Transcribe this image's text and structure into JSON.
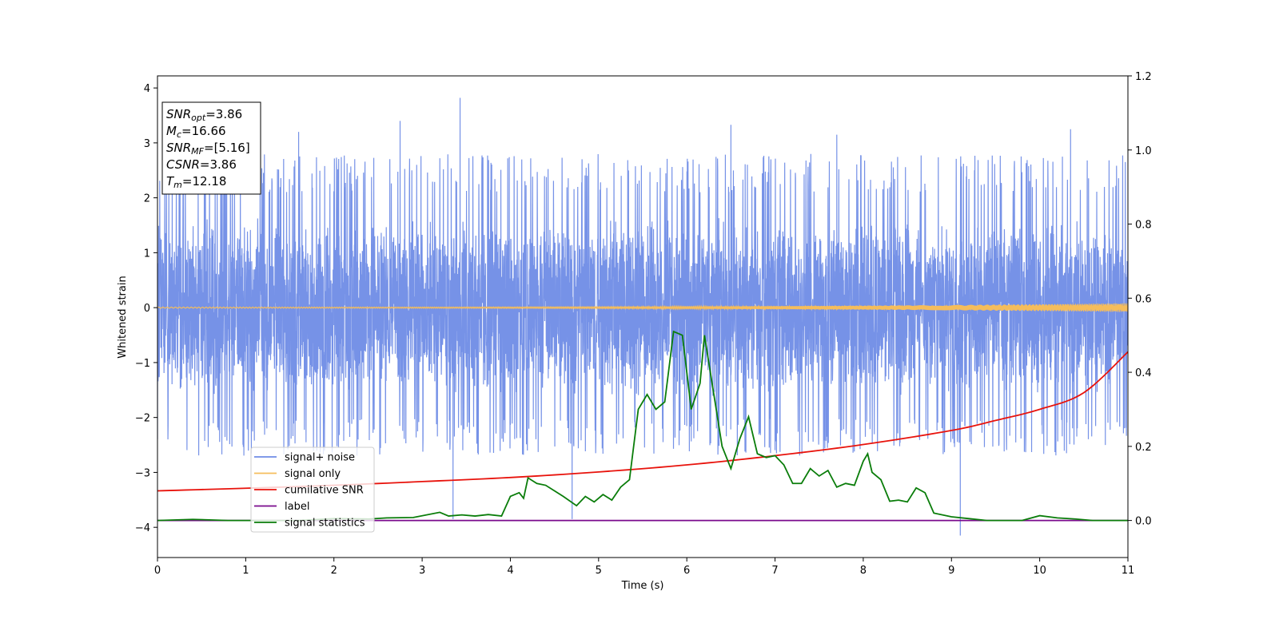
{
  "chart_data": {
    "type": "line",
    "xlabel": "Time (s)",
    "ylabel": "Whitened strain",
    "xlim": [
      0,
      11
    ],
    "ylim": [
      -4.55,
      4.22
    ],
    "y2lim": [
      -0.1,
      1.2
    ],
    "x_ticks": [
      0,
      1,
      2,
      3,
      4,
      5,
      6,
      7,
      8,
      9,
      10,
      11
    ],
    "y_ticks": [
      -4,
      -3,
      -2,
      -1,
      0,
      1,
      2,
      3,
      4
    ],
    "y2_ticks": [
      0.0,
      0.2,
      0.4,
      0.6,
      0.8,
      1.0,
      1.2
    ],
    "grid": false,
    "legend_position": "lower-left",
    "annotation": [
      {
        "sym": "SNR",
        "sub": "opt",
        "value": "=3.86"
      },
      {
        "sym": "M",
        "sub": "c",
        "value": "=16.66"
      },
      {
        "sym": "SNR",
        "sub": "MF",
        "value": "=[5.16]"
      },
      {
        "sym": "CSNR",
        "sub": "",
        "value": "=3.86"
      },
      {
        "sym": "T",
        "sub": "m",
        "value": "=12.18"
      }
    ],
    "series": [
      {
        "name": "signal+ noise",
        "color": "#6f8ce6",
        "axis": "left",
        "description": "dense noise",
        "band": {
          "core_low": -1.5,
          "core_high": 1.5,
          "peak_low": -2.7,
          "peak_high": 2.8
        },
        "spikes": [
          [
            3.43,
            3.82
          ],
          [
            2.75,
            3.4
          ],
          [
            6.5,
            3.33
          ],
          [
            10.35,
            3.25
          ],
          [
            9.1,
            -4.15
          ],
          [
            3.35,
            -3.85
          ],
          [
            4.7,
            -3.85
          ],
          [
            1.6,
            3.2
          ],
          [
            7.7,
            3.15
          ]
        ]
      },
      {
        "name": "signal only",
        "color": "#f5bd5c",
        "axis": "left",
        "chirp": {
          "amp_start": 0.01,
          "amp_end": 0.08
        }
      },
      {
        "name": "cumilative SNR",
        "color": "#e8130c",
        "axis": "right",
        "points": [
          [
            0,
            0.08
          ],
          [
            1,
            0.087
          ],
          [
            2,
            0.095
          ],
          [
            3,
            0.105
          ],
          [
            4,
            0.116
          ],
          [
            5,
            0.131
          ],
          [
            6,
            0.15
          ],
          [
            7,
            0.175
          ],
          [
            8,
            0.205
          ],
          [
            9,
            0.243
          ],
          [
            9.5,
            0.27
          ],
          [
            10,
            0.3
          ],
          [
            10.5,
            0.345
          ],
          [
            11,
            0.455
          ]
        ]
      },
      {
        "name": "label",
        "color": "#7a0a8c",
        "axis": "right",
        "points": [
          [
            0,
            0.0
          ],
          [
            11,
            0.0
          ]
        ]
      },
      {
        "name": "signal statistics",
        "color": "#0a7d0a",
        "axis": "right",
        "points": [
          [
            0,
            0.0
          ],
          [
            0.4,
            0.003
          ],
          [
            0.8,
            0.0
          ],
          [
            1.2,
            0.0
          ],
          [
            1.6,
            0.0
          ],
          [
            2.0,
            0.005
          ],
          [
            2.4,
            0.004
          ],
          [
            2.6,
            0.007
          ],
          [
            2.9,
            0.008
          ],
          [
            3.2,
            0.022
          ],
          [
            3.3,
            0.012
          ],
          [
            3.45,
            0.015
          ],
          [
            3.6,
            0.012
          ],
          [
            3.75,
            0.016
          ],
          [
            3.9,
            0.012
          ],
          [
            4.0,
            0.065
          ],
          [
            4.1,
            0.075
          ],
          [
            4.15,
            0.06
          ],
          [
            4.2,
            0.115
          ],
          [
            4.3,
            0.1
          ],
          [
            4.4,
            0.095
          ],
          [
            4.5,
            0.08
          ],
          [
            4.6,
            0.065
          ],
          [
            4.75,
            0.04
          ],
          [
            4.85,
            0.065
          ],
          [
            4.95,
            0.05
          ],
          [
            5.05,
            0.07
          ],
          [
            5.15,
            0.055
          ],
          [
            5.25,
            0.09
          ],
          [
            5.35,
            0.11
          ],
          [
            5.45,
            0.3
          ],
          [
            5.55,
            0.34
          ],
          [
            5.65,
            0.3
          ],
          [
            5.75,
            0.32
          ],
          [
            5.85,
            0.51
          ],
          [
            5.95,
            0.5
          ],
          [
            6.05,
            0.3
          ],
          [
            6.15,
            0.37
          ],
          [
            6.2,
            0.5
          ],
          [
            6.3,
            0.35
          ],
          [
            6.4,
            0.2
          ],
          [
            6.5,
            0.14
          ],
          [
            6.6,
            0.22
          ],
          [
            6.7,
            0.28
          ],
          [
            6.8,
            0.18
          ],
          [
            6.9,
            0.17
          ],
          [
            7.0,
            0.175
          ],
          [
            7.1,
            0.15
          ],
          [
            7.2,
            0.1
          ],
          [
            7.3,
            0.1
          ],
          [
            7.4,
            0.14
          ],
          [
            7.5,
            0.12
          ],
          [
            7.6,
            0.135
          ],
          [
            7.7,
            0.09
          ],
          [
            7.8,
            0.1
          ],
          [
            7.9,
            0.095
          ],
          [
            8.0,
            0.16
          ],
          [
            8.05,
            0.18
          ],
          [
            8.1,
            0.13
          ],
          [
            8.2,
            0.11
          ],
          [
            8.3,
            0.052
          ],
          [
            8.4,
            0.055
          ],
          [
            8.5,
            0.05
          ],
          [
            8.6,
            0.088
          ],
          [
            8.7,
            0.075
          ],
          [
            8.8,
            0.02
          ],
          [
            9.0,
            0.01
          ],
          [
            9.2,
            0.005
          ],
          [
            9.4,
            0.0
          ],
          [
            9.6,
            0.0
          ],
          [
            9.8,
            0.0
          ],
          [
            10.0,
            0.013
          ],
          [
            10.2,
            0.007
          ],
          [
            10.4,
            0.004
          ],
          [
            10.6,
            0.0
          ],
          [
            11.0,
            0.0
          ]
        ]
      }
    ]
  }
}
